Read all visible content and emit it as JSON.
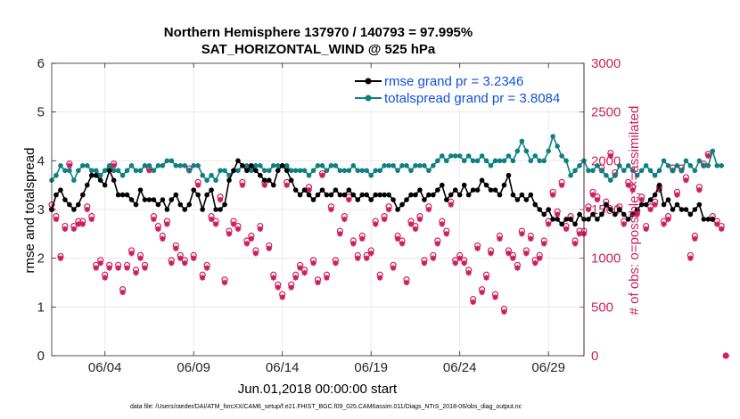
{
  "chart_data": {
    "type": "line",
    "title": "Northern Hemisphere 137970 / 140793 = 97.995%",
    "subtitle": "SAT_HORIZONTAL_WIND @ 525 hPa",
    "xlabel": "Jun.01,2018 00:00:00 start",
    "ylabel": "rmse and totalspread",
    "ylabel_right": "# of obs: o=possible; ×=assimilated",
    "footnote": "data file: /Users/raeder/DAI/ATM_forcXX/CAM6_setup/f.e21.FHIST_BGC.f09_025.CAM6assim.011/Diags_NTrS_2018-06/obs_diag_output.nc",
    "xlim": [
      1,
      31
    ],
    "ylim": [
      0,
      6
    ],
    "ylim_right": [
      0,
      3000
    ],
    "xticks": [
      4,
      9,
      14,
      19,
      24,
      29
    ],
    "xtick_labels": [
      "06/04",
      "06/09",
      "06/14",
      "06/19",
      "06/24",
      "06/29"
    ],
    "yticks": [
      0,
      1,
      2,
      3,
      4,
      5,
      6
    ],
    "yticks_right": [
      0,
      500,
      1000,
      1500,
      2000,
      2500,
      3000
    ],
    "grid": true,
    "legend_position": "top-right",
    "x_start": 1.0,
    "x_step": 0.25,
    "series": [
      {
        "name": "rmse grand pr = 3.2346",
        "axis": "left",
        "color": "#000000",
        "values": [
          3.0,
          3.3,
          3.4,
          3.2,
          3.1,
          3.0,
          3.1,
          3.3,
          3.5,
          3.7,
          3.7,
          3.6,
          3.5,
          3.8,
          3.6,
          3.3,
          3.3,
          3.3,
          3.2,
          3.1,
          3.4,
          3.2,
          3.2,
          3.2,
          3.1,
          3.2,
          3.0,
          3.2,
          3.3,
          3.1,
          3.0,
          3.1,
          3.4,
          3.3,
          3.0,
          3.3,
          3.4,
          3.0,
          3.0,
          3.1,
          3.6,
          3.8,
          4.0,
          3.9,
          3.8,
          3.9,
          3.8,
          3.7,
          3.6,
          3.6,
          3.5,
          3.8,
          3.9,
          3.8,
          3.6,
          3.4,
          3.3,
          3.4,
          3.3,
          3.2,
          3.3,
          3.4,
          3.3,
          3.3,
          3.4,
          3.3,
          3.3,
          3.4,
          3.3,
          3.2,
          3.3,
          3.3,
          3.2,
          3.3,
          3.3,
          3.3,
          3.3,
          3.2,
          3.0,
          3.1,
          3.2,
          3.3,
          3.3,
          3.4,
          3.2,
          3.3,
          3.3,
          3.4,
          3.5,
          3.2,
          3.3,
          3.4,
          3.3,
          3.5,
          3.3,
          3.4,
          3.4,
          3.6,
          3.5,
          3.4,
          3.4,
          3.3,
          3.5,
          3.7,
          3.3,
          3.2,
          3.3,
          3.2,
          3.3,
          3.1,
          3.0,
          2.9,
          3.0,
          2.8,
          2.8,
          2.7,
          2.8,
          2.8,
          2.7,
          2.9,
          2.8,
          2.8,
          2.9,
          2.8,
          2.9,
          3.1,
          3.0,
          2.9,
          3.0,
          2.9,
          2.8,
          2.9,
          3.0,
          3.1,
          3.1,
          3.2,
          3.3,
          3.5,
          3.1,
          3.2,
          3.0,
          3.1,
          3.0,
          3.0,
          2.9,
          3.0,
          3.1,
          2.8,
          2.8,
          2.8
        ]
      },
      {
        "name": "totalspread grand pr = 3.8084",
        "axis": "left",
        "color": "#0e8080",
        "values": [
          3.6,
          3.7,
          3.9,
          3.8,
          3.8,
          3.6,
          3.8,
          3.9,
          3.9,
          3.8,
          3.8,
          3.7,
          3.8,
          3.9,
          3.8,
          3.8,
          3.7,
          3.8,
          3.9,
          3.8,
          3.8,
          3.9,
          3.9,
          3.8,
          3.9,
          3.9,
          4.0,
          4.0,
          3.9,
          3.9,
          3.9,
          3.8,
          3.9,
          3.9,
          3.7,
          3.6,
          3.7,
          3.6,
          3.8,
          3.8,
          3.7,
          3.8,
          3.8,
          3.9,
          3.9,
          3.8,
          3.9,
          3.9,
          3.8,
          3.8,
          3.9,
          3.9,
          3.9,
          3.9,
          3.8,
          3.8,
          3.8,
          3.8,
          3.7,
          3.8,
          3.9,
          3.9,
          3.8,
          3.9,
          3.9,
          3.8,
          3.8,
          3.8,
          3.9,
          3.8,
          3.8,
          3.8,
          3.7,
          3.8,
          3.8,
          3.9,
          3.9,
          3.9,
          3.8,
          3.9,
          3.9,
          3.8,
          3.9,
          3.9,
          3.9,
          3.8,
          3.9,
          4.0,
          4.1,
          4.0,
          4.1,
          4.1,
          4.1,
          4.0,
          4.1,
          4.0,
          4.0,
          4.1,
          4.0,
          3.9,
          4.0,
          4.0,
          4.0,
          4.1,
          4.0,
          4.2,
          4.4,
          4.2,
          4.0,
          4.1,
          4.0,
          4.0,
          4.2,
          4.5,
          4.3,
          4.1,
          4.0,
          3.7,
          3.8,
          3.9,
          4.0,
          3.8,
          3.8,
          3.9,
          3.8,
          3.7,
          3.6,
          3.7,
          3.9,
          3.8,
          3.9,
          3.8,
          3.7,
          3.8,
          3.9,
          3.8,
          3.7,
          3.8,
          4.0,
          3.9,
          3.8,
          3.9,
          3.8,
          4.0,
          3.9,
          3.8,
          4.0,
          3.9,
          3.9,
          4.2,
          3.9,
          3.9
        ]
      },
      {
        "name": "# of obs assimilated",
        "axis": "right",
        "color": "#cc1e5e",
        "values": [
          1500,
          1400,
          1000,
          1300,
          1950,
          1300,
          1350,
          1350,
          1500,
          1400,
          900,
          950,
          800,
          900,
          1950,
          900,
          650,
          900,
          1050,
          850,
          1000,
          900,
          1900,
          1400,
          1300,
          1200,
          1350,
          950,
          1100,
          1000,
          950,
          1900,
          1000,
          1750,
          800,
          900,
          1400,
          1350,
          1600,
          750,
          1250,
          1350,
          1300,
          1750,
          1150,
          1200,
          1050,
          1300,
          1750,
          1100,
          800,
          700,
          600,
          1750,
          700,
          800,
          900,
          850,
          1700,
          950,
          750,
          1850,
          800,
          1500,
          950,
          1250,
          1400,
          1600,
          1150,
          1000,
          1200,
          1000,
          1050,
          1350,
          800,
          1400,
          1500,
          900,
          1200,
          1150,
          750,
          1350,
          1300,
          1400,
          950,
          1500,
          1000,
          1150,
          1350,
          1250,
          1550,
          950,
          1000,
          950,
          850,
          550,
          1100,
          650,
          800,
          1050,
          600,
          1200,
          450,
          1050,
          1000,
          900,
          1250,
          1050,
          1200,
          950,
          1000,
          1150,
          1350,
          1650,
          1450,
          1750,
          1300,
          1400,
          1150,
          1250,
          1250,
          1500,
          1650,
          1600,
          1900,
          1550,
          2050,
          1850,
          1500,
          1350,
          1750,
          1700,
          1450,
          1600,
          1300,
          1500,
          1550,
          1700,
          1350,
          1400,
          1900,
          1650,
          1900,
          1800,
          1000,
          1200,
          1700,
          1950,
          2050,
          1400,
          1350,
          1300,
          0
        ]
      },
      {
        "name": "# of obs possible",
        "axis": "right",
        "color": "#cc1e5e",
        "values": [
          1550,
          1430,
          1020,
          1330,
          1970,
          1330,
          1380,
          1380,
          1530,
          1430,
          930,
          980,
          830,
          930,
          1970,
          930,
          680,
          930,
          1080,
          880,
          1030,
          930,
          1920,
          1430,
          1330,
          1230,
          1380,
          980,
          1130,
          1030,
          980,
          1920,
          1030,
          1780,
          830,
          930,
          1430,
          1380,
          1630,
          780,
          1280,
          1380,
          1330,
          1780,
          1180,
          1230,
          1080,
          1330,
          1780,
          1130,
          830,
          730,
          630,
          1780,
          730,
          830,
          930,
          880,
          1730,
          980,
          780,
          1870,
          830,
          1530,
          980,
          1280,
          1430,
          1630,
          1180,
          1030,
          1230,
          1030,
          1080,
          1380,
          830,
          1430,
          1530,
          930,
          1230,
          1180,
          780,
          1380,
          1330,
          1430,
          980,
          1530,
          1030,
          1180,
          1380,
          1280,
          1580,
          980,
          1030,
          980,
          880,
          580,
          1130,
          680,
          830,
          1080,
          630,
          1230,
          480,
          1080,
          1030,
          930,
          1280,
          1080,
          1230,
          980,
          1030,
          1180,
          1380,
          1680,
          1480,
          1780,
          1330,
          1430,
          1180,
          1280,
          1280,
          1530,
          1680,
          1630,
          1930,
          1580,
          2080,
          1880,
          1530,
          1380,
          1780,
          1730,
          1480,
          1630,
          1330,
          1530,
          1580,
          1730,
          1380,
          1430,
          1930,
          1680,
          1930,
          1830,
          1030,
          1230,
          1730,
          1970,
          2070,
          1430,
          1380,
          1330,
          0
        ]
      }
    ]
  }
}
